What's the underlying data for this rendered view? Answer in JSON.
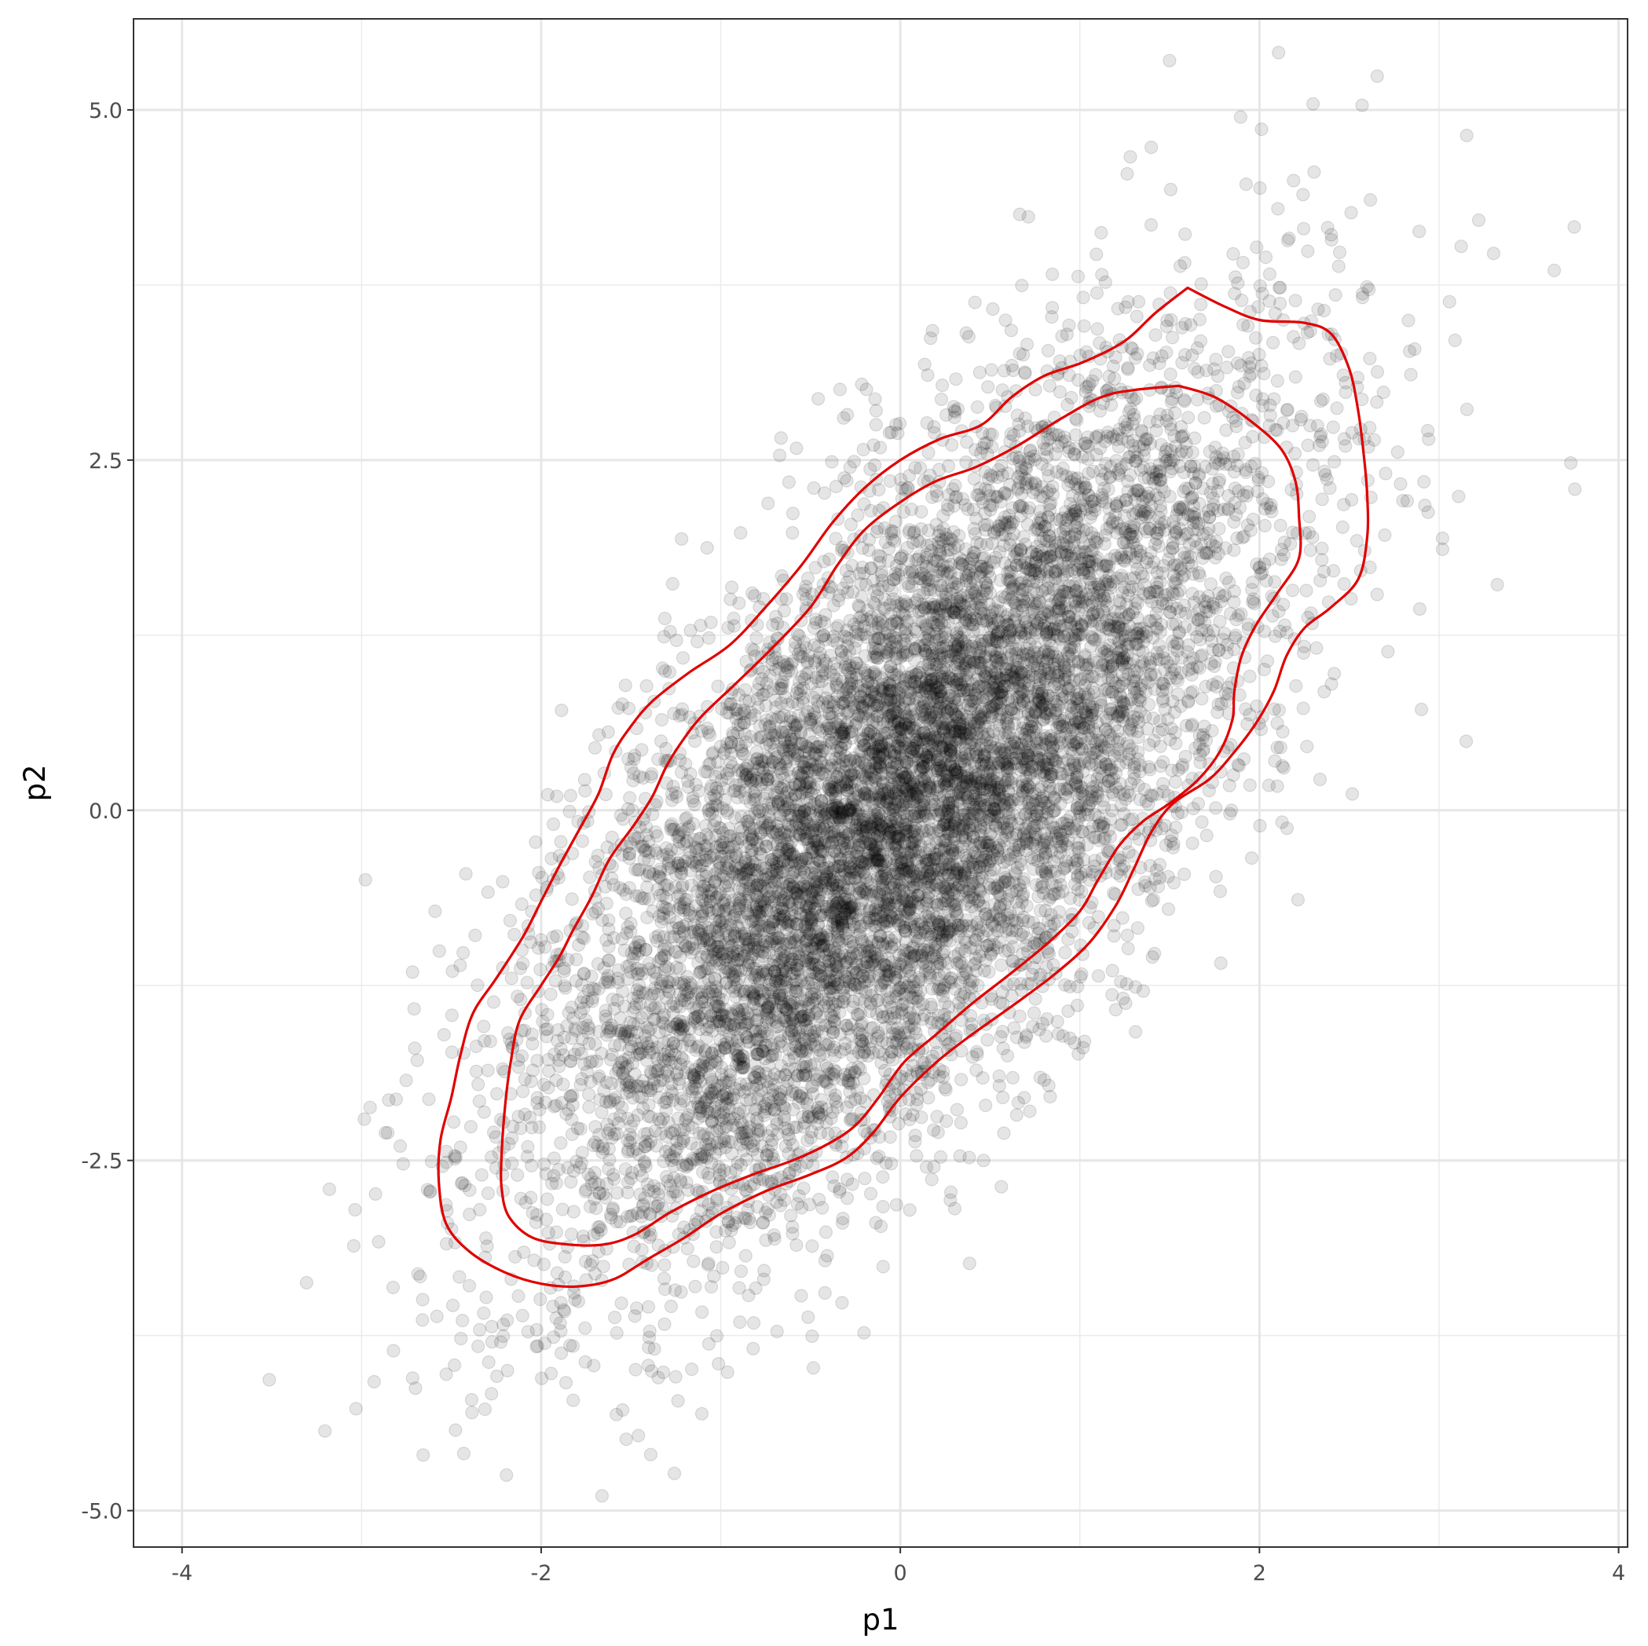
{
  "chart_data": {
    "type": "scatter",
    "xlabel": "p1",
    "ylabel": "p2",
    "xlim": [
      -4.27,
      4.05
    ],
    "ylim": [
      -5.26,
      5.65
    ],
    "x_ticks": [
      -4,
      -2,
      0,
      2,
      4
    ],
    "x_tick_labels": [
      "-4",
      "-2",
      "0",
      "2",
      "4"
    ],
    "y_ticks": [
      -5.0,
      -2.5,
      0.0,
      2.5,
      5.0
    ],
    "y_tick_labels": [
      "-5.0",
      "-2.5",
      "0.0",
      "2.5",
      "5.0"
    ],
    "grid": true,
    "legend": "none",
    "points": {
      "description_of_distribution": "bivariate normal, approx 10000 points",
      "n": 10000,
      "mean": [
        0,
        0
      ],
      "sd": [
        1,
        1.5
      ],
      "correlation": 0.7,
      "color": "#000000",
      "alpha": 0.1
    },
    "contours": {
      "color": "#e00000",
      "levels": [
        {
          "name": "inner",
          "path": [
            [
              1.55,
              3.03
            ],
            [
              1.75,
              2.95
            ],
            [
              1.95,
              2.78
            ],
            [
              2.12,
              2.58
            ],
            [
              2.2,
              2.35
            ],
            [
              2.22,
              2.1
            ],
            [
              2.22,
              1.8
            ],
            [
              2.1,
              1.55
            ],
            [
              1.98,
              1.32
            ],
            [
              1.9,
              1.1
            ],
            [
              1.86,
              0.85
            ],
            [
              1.85,
              0.65
            ],
            [
              1.78,
              0.42
            ],
            [
              1.66,
              0.22
            ],
            [
              1.5,
              0.05
            ],
            [
              1.35,
              -0.08
            ],
            [
              1.22,
              -0.25
            ],
            [
              1.1,
              -0.5
            ],
            [
              1.0,
              -0.72
            ],
            [
              0.82,
              -0.95
            ],
            [
              0.6,
              -1.18
            ],
            [
              0.4,
              -1.38
            ],
            [
              0.2,
              -1.6
            ],
            [
              0.02,
              -1.8
            ],
            [
              -0.12,
              -2.05
            ],
            [
              -0.25,
              -2.25
            ],
            [
              -0.4,
              -2.38
            ],
            [
              -0.6,
              -2.5
            ],
            [
              -0.82,
              -2.6
            ],
            [
              -1.05,
              -2.72
            ],
            [
              -1.28,
              -2.87
            ],
            [
              -1.48,
              -3.03
            ],
            [
              -1.65,
              -3.1
            ],
            [
              -1.85,
              -3.1
            ],
            [
              -2.05,
              -3.05
            ],
            [
              -2.18,
              -2.9
            ],
            [
              -2.22,
              -2.7
            ],
            [
              -2.22,
              -2.45
            ],
            [
              -2.2,
              -2.1
            ],
            [
              -2.17,
              -1.8
            ],
            [
              -2.12,
              -1.5
            ],
            [
              -2.0,
              -1.25
            ],
            [
              -1.9,
              -1.05
            ],
            [
              -1.82,
              -0.85
            ],
            [
              -1.72,
              -0.62
            ],
            [
              -1.62,
              -0.35
            ],
            [
              -1.48,
              -0.1
            ],
            [
              -1.38,
              0.1
            ],
            [
              -1.3,
              0.32
            ],
            [
              -1.2,
              0.52
            ],
            [
              -1.1,
              0.68
            ],
            [
              -0.92,
              0.9
            ],
            [
              -0.72,
              1.15
            ],
            [
              -0.5,
              1.45
            ],
            [
              -0.35,
              1.75
            ],
            [
              -0.2,
              2.0
            ],
            [
              0.0,
              2.2
            ],
            [
              0.2,
              2.35
            ],
            [
              0.42,
              2.45
            ],
            [
              0.65,
              2.6
            ],
            [
              0.9,
              2.8
            ],
            [
              1.12,
              2.95
            ],
            [
              1.3,
              3.0
            ],
            [
              1.55,
              3.03
            ]
          ]
        },
        {
          "name": "outer",
          "path": [
            [
              1.6,
              3.73
            ],
            [
              1.8,
              3.6
            ],
            [
              2.0,
              3.5
            ],
            [
              2.25,
              3.48
            ],
            [
              2.4,
              3.4
            ],
            [
              2.5,
              3.15
            ],
            [
              2.55,
              2.85
            ],
            [
              2.58,
              2.55
            ],
            [
              2.6,
              2.25
            ],
            [
              2.6,
              1.95
            ],
            [
              2.55,
              1.65
            ],
            [
              2.4,
              1.45
            ],
            [
              2.25,
              1.3
            ],
            [
              2.15,
              1.1
            ],
            [
              2.08,
              0.85
            ],
            [
              1.98,
              0.62
            ],
            [
              1.85,
              0.4
            ],
            [
              1.72,
              0.22
            ],
            [
              1.52,
              0.05
            ],
            [
              1.4,
              -0.15
            ],
            [
              1.3,
              -0.42
            ],
            [
              1.2,
              -0.68
            ],
            [
              1.05,
              -0.95
            ],
            [
              0.85,
              -1.18
            ],
            [
              0.62,
              -1.4
            ],
            [
              0.4,
              -1.6
            ],
            [
              0.2,
              -1.8
            ],
            [
              0.0,
              -2.05
            ],
            [
              -0.15,
              -2.3
            ],
            [
              -0.3,
              -2.48
            ],
            [
              -0.5,
              -2.6
            ],
            [
              -0.75,
              -2.72
            ],
            [
              -1.0,
              -2.88
            ],
            [
              -1.2,
              -3.05
            ],
            [
              -1.4,
              -3.2
            ],
            [
              -1.6,
              -3.35
            ],
            [
              -1.8,
              -3.4
            ],
            [
              -2.0,
              -3.38
            ],
            [
              -2.2,
              -3.3
            ],
            [
              -2.4,
              -3.15
            ],
            [
              -2.53,
              -2.95
            ],
            [
              -2.57,
              -2.65
            ],
            [
              -2.56,
              -2.35
            ],
            [
              -2.5,
              -2.05
            ],
            [
              -2.45,
              -1.75
            ],
            [
              -2.38,
              -1.45
            ],
            [
              -2.25,
              -1.2
            ],
            [
              -2.1,
              -0.9
            ],
            [
              -2.0,
              -0.65
            ],
            [
              -1.9,
              -0.4
            ],
            [
              -1.78,
              -0.12
            ],
            [
              -1.68,
              0.12
            ],
            [
              -1.6,
              0.4
            ],
            [
              -1.5,
              0.6
            ],
            [
              -1.38,
              0.78
            ],
            [
              -1.18,
              0.98
            ],
            [
              -0.95,
              1.18
            ],
            [
              -0.75,
              1.45
            ],
            [
              -0.55,
              1.75
            ],
            [
              -0.38,
              2.05
            ],
            [
              -0.2,
              2.3
            ],
            [
              0.0,
              2.5
            ],
            [
              0.22,
              2.65
            ],
            [
              0.45,
              2.75
            ],
            [
              0.62,
              2.95
            ],
            [
              0.8,
              3.1
            ],
            [
              1.02,
              3.2
            ],
            [
              1.25,
              3.35
            ],
            [
              1.42,
              3.55
            ],
            [
              1.6,
              3.73
            ]
          ]
        }
      ]
    }
  }
}
